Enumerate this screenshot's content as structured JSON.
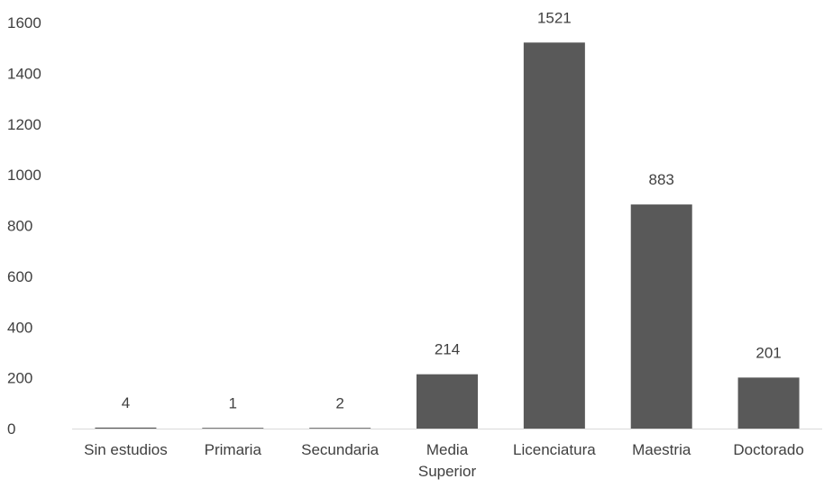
{
  "chart_data": {
    "type": "bar",
    "title": "",
    "xlabel": "",
    "ylabel": "",
    "categories": [
      "Sin estudios",
      "Primaria",
      "Secundaria",
      "Media Superior",
      "Licenciatura",
      "Maestria",
      "Doctorado"
    ],
    "category_lines": [
      [
        "Sin estudios"
      ],
      [
        "Primaria"
      ],
      [
        "Secundaria"
      ],
      [
        "Media",
        "Superior"
      ],
      [
        "Licenciatura"
      ],
      [
        "Maestria"
      ],
      [
        "Doctorado"
      ]
    ],
    "values": [
      4,
      1,
      2,
      214,
      1521,
      883,
      201
    ],
    "data_labels": [
      "4",
      "1",
      "2",
      "214",
      "1521",
      "883",
      "201"
    ],
    "ylim": [
      0,
      1600
    ],
    "yticks": [
      0,
      200,
      400,
      600,
      800,
      1000,
      1200,
      1400,
      1600
    ],
    "grid": false,
    "legend": "none",
    "colors": {
      "bar": "#595959",
      "axis": "#d9d9d9",
      "text": "#404040"
    }
  }
}
